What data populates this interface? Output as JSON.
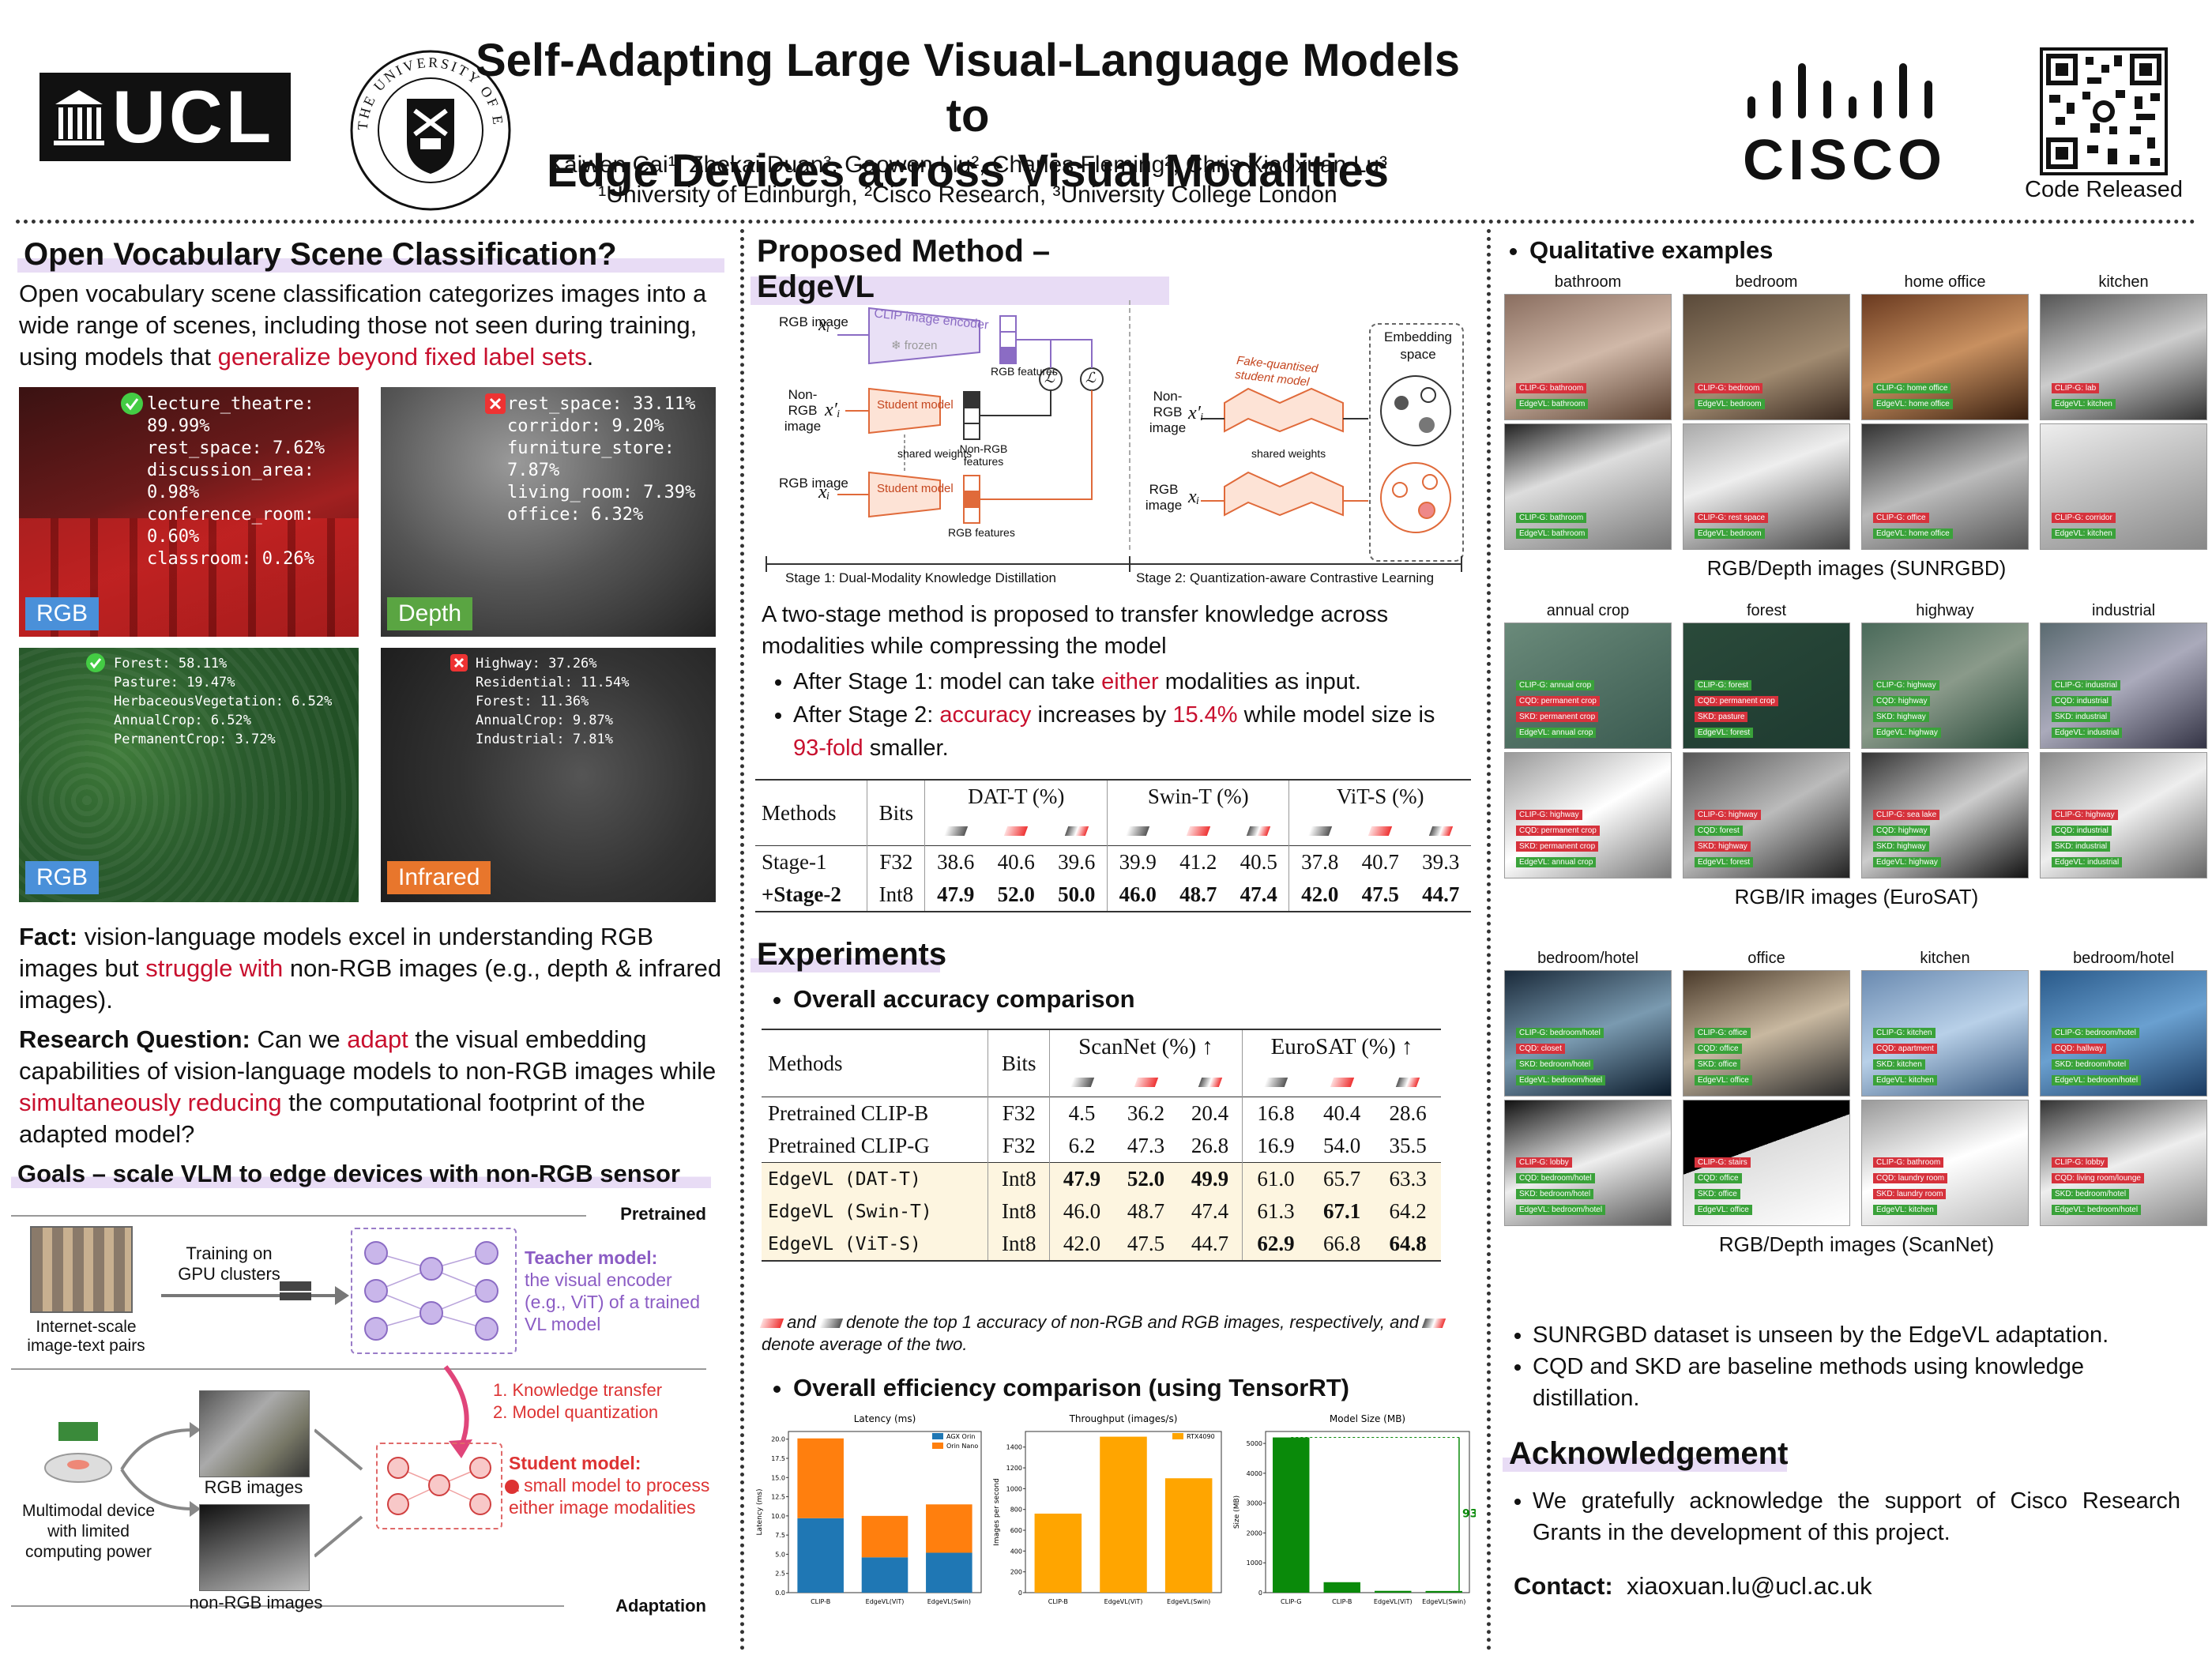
{
  "header": {
    "title_line1": "Self-Adapting Large Visual-Language Models to",
    "title_line2": "Edge Devices across Visual Modalities",
    "authors": "Kaiwen Cai¹, Zhekai Duan³, Gaowen Liu², Charles Fleming², Chris Xiaoxuan Lu³",
    "affiliations": "¹University of Edinburgh, ²Cisco Research, ³University College London",
    "ucl": "UCL",
    "edinburgh": "THE UNIVERSITY OF EDINBURGH",
    "cisco": "CISCO",
    "code_released": "Code Released"
  },
  "left": {
    "title": "Open Vocabulary Scene Classification?",
    "intro_a": "Open vocabulary scene classification categorizes images into a wide range of scenes, including those not seen during training, using models that ",
    "intro_red": "generalize beyond fixed label sets",
    "intro_b": ".",
    "img1": {
      "tag": "RGB",
      "lines": [
        "lecture_theatre: 89.99%",
        "rest_space: 7.62%",
        "discussion_area: 0.98%",
        "conference_room: 0.60%",
        "classroom: 0.26%"
      ]
    },
    "img2": {
      "tag": "Depth",
      "lines": [
        "rest_space: 33.11%",
        "corridor: 9.20%",
        "furniture_store: 7.87%",
        "living_room: 7.39%",
        "office: 6.32%"
      ]
    },
    "img3": {
      "tag": "RGB",
      "lines": [
        "Forest: 58.11%",
        "Pasture: 19.47%",
        "HerbaceousVegetation: 6.52%",
        "AnnualCrop: 6.52%",
        "PermanentCrop: 3.72%"
      ]
    },
    "img4": {
      "tag": "Infrared",
      "lines": [
        "Highway: 37.26%",
        "Residential: 11.54%",
        "Forest: 11.36%",
        "AnnualCrop: 9.87%",
        "Industrial: 7.81%"
      ]
    },
    "fact_b": "Fact:",
    "fact_a": " vision-language models excel in understanding RGB images but ",
    "fact_red": "struggle with",
    "fact_c": " non-RGB images (e.g., depth & infrared images).",
    "rq_b": "Research Question:",
    "rq_a": " Can we ",
    "rq_red1": "adapt",
    "rq_c": " the visual embedding capabilities of vision-language models to non-RGB images while ",
    "rq_red2": "simultaneously reducing",
    "rq_d": " the computational footprint of the adapted model?",
    "goals_title": "Goals – scale VLM to edge devices with non-RGB sensor",
    "goals": {
      "pretrained": "Pretrained",
      "adaptation": "Adaptation",
      "internet": "Internet-scale image-text pairs",
      "training": "Training on GPU clusters",
      "teacher_b": "Teacher model:",
      "teacher": "the visual encoder (e.g., ViT) of a trained VL model",
      "kt1": "1. Knowledge transfer",
      "kt2": "2. Model quantization",
      "student_b": "Student model:",
      "student": "a small model to process either image modalities",
      "rgb": "RGB images",
      "nonrgb": "non-RGB images",
      "device": "Multimodal device with limited computing power"
    }
  },
  "middle": {
    "title": "Proposed Method – EdgeVL",
    "diagram": {
      "rgb_image": "RGB image",
      "non_rgb_image": "Non-RGB image",
      "clip": "CLIP image encoder",
      "frozen": "frozen",
      "student": "Student model",
      "shared": "shared weights",
      "rgb_feat": "RGB features",
      "nonrgb_feat": "Non-RGB features",
      "fq": "Fake-quantised student model",
      "emb": "Embedding space",
      "stage1": "Stage 1: Dual-Modality Knowledge Distillation",
      "stage2": "Stage 2: Quantization-aware Contrastive Learning",
      "xi": "xᵢ",
      "xpi": "x′ᵢ",
      "loss": "ℒ"
    },
    "desc": "A two-stage method is proposed to transfer knowledge across modalities while compressing the model",
    "b1_a": "After Stage 1: model can take ",
    "b1_red": "either",
    "b1_b": " modalities as input.",
    "b2_a": "After Stage 2: ",
    "b2_red1": "accuracy",
    "b2_b": " increases by ",
    "b2_red2": "15.4%",
    "b2_c": " while model size is ",
    "b2_red3": "93-fold",
    "b2_d": " smaller.",
    "table1": {
      "headers": [
        "Methods",
        "Bits",
        "DAT-T (%)",
        "Swin-T (%)",
        "ViT-S (%)"
      ],
      "rows": [
        {
          "m": "Stage-1",
          "b": "F32",
          "v": [
            "38.6",
            "40.6",
            "39.6",
            "39.9",
            "41.2",
            "40.5",
            "37.8",
            "40.7",
            "39.3"
          ]
        },
        {
          "m": "+Stage-2",
          "b": "Int8",
          "v": [
            "47.9",
            "52.0",
            "50.0",
            "46.0",
            "48.7",
            "47.4",
            "42.0",
            "47.5",
            "44.7"
          ]
        }
      ]
    },
    "exp_title": "Experiments",
    "acc_title": "Overall accuracy comparison",
    "table2": {
      "headers": [
        "Methods",
        "Bits",
        "ScanNet (%) ↑",
        "EuroSAT (%) ↑"
      ],
      "rows": [
        {
          "m": "Pretrained CLIP-B",
          "b": "F32",
          "v": [
            "4.5",
            "36.2",
            "20.4",
            "16.8",
            "40.4",
            "28.6"
          ]
        },
        {
          "m": "Pretrained CLIP-G",
          "b": "F32",
          "v": [
            "6.2",
            "47.3",
            "26.8",
            "16.9",
            "54.0",
            "35.5"
          ]
        },
        {
          "m": "EdgeVL (DAT-T)",
          "b": "Int8",
          "v": [
            "47.9",
            "52.0",
            "49.9",
            "61.0",
            "65.7",
            "63.3"
          ]
        },
        {
          "m": "EdgeVL (Swin-T)",
          "b": "Int8",
          "v": [
            "46.0",
            "48.7",
            "47.4",
            "61.3",
            "67.1",
            "64.2"
          ]
        },
        {
          "m": "EdgeVL (ViT-S)",
          "b": "Int8",
          "v": [
            "42.0",
            "47.5",
            "44.7",
            "62.9",
            "66.8",
            "64.8"
          ]
        }
      ]
    },
    "legend_note_a": " and ",
    "legend_note_b": " denote the top 1 accuracy of non-RGB and RGB images, respectively, and ",
    "legend_note_c": " denote average of the two.",
    "eff_title": "Overall efficiency comparison (using TensorRT)"
  },
  "chart_data": [
    {
      "type": "bar",
      "title": "Latency (ms)",
      "ylabel": "Latency (ms)",
      "categories": [
        "CLIP-B",
        "EdgeVL(ViT)",
        "EdgeVL(Swin)"
      ],
      "series": [
        {
          "name": "AGX Orin",
          "values": [
            9.7,
            4.6,
            5.2
          ]
        },
        {
          "name": "Orin Nano",
          "values": [
            10.4,
            5.4,
            6.3
          ]
        }
      ],
      "stacked": true,
      "ylim": [
        0,
        21
      ],
      "yticks": [
        "0.0",
        "2.5",
        "5.0",
        "7.5",
        "10.0",
        "12.5",
        "15.0",
        "17.5",
        "20.0"
      ],
      "colors": [
        "#1f77b4",
        "#ff7f0e"
      ]
    },
    {
      "type": "bar",
      "title": "Throughput (images/s)",
      "ylabel": "Images per second",
      "categories": [
        "CLIP-B",
        "EdgeVL(ViT)",
        "EdgeVL(Swin)"
      ],
      "series": [
        {
          "name": "RTX4090",
          "values": [
            760,
            1500,
            1100
          ]
        }
      ],
      "ylim": [
        0,
        1550
      ],
      "yticks": [
        "0",
        "200",
        "400",
        "600",
        "800",
        "1000",
        "1200",
        "1400"
      ],
      "colors": [
        "#ffa500"
      ]
    },
    {
      "type": "bar",
      "title": "Model Size (MB)",
      "ylabel": "Size (MB)",
      "categories": [
        "CLIP-G",
        "CLIP-B",
        "EdgeVL(ViT)",
        "EdgeVL(Swin)"
      ],
      "series": [
        {
          "values": [
            5200,
            350,
            60,
            56
          ]
        }
      ],
      "ylim": [
        0,
        5400
      ],
      "yticks": [
        "0",
        "1000",
        "2000",
        "3000",
        "4000",
        "5000"
      ],
      "colors": [
        "#0a8a0a"
      ],
      "annotation": "93x"
    }
  ],
  "right": {
    "qual_title": "Qualitative examples",
    "sun": {
      "cols": [
        "bathroom",
        "bedroom",
        "home office",
        "kitchen"
      ],
      "caption": "RGB/Depth images (SUNRGBD)",
      "rgb": [
        [
          "r:CLIP-G: bathroom",
          "g:EdgeVL: bathroom"
        ],
        [
          "r:CLIP-G: bedroom",
          "g:EdgeVL: bedroom"
        ],
        [
          "g:CLIP-G: home office",
          "g:EdgeVL: home office"
        ],
        [
          "r:CLIP-G: lab",
          "g:EdgeVL: kitchen"
        ]
      ],
      "dep": [
        [
          "g:CLIP-G: bathroom",
          "g:EdgeVL: bathroom"
        ],
        [
          "r:CLIP-G: rest space",
          "g:EdgeVL: bedroom"
        ],
        [
          "r:CLIP-G: office",
          "g:EdgeVL: home office"
        ],
        [
          "r:CLIP-G: corridor",
          "g:EdgeVL: kitchen"
        ]
      ]
    },
    "euro": {
      "cols": [
        "annual crop",
        "forest",
        "highway",
        "industrial"
      ],
      "caption": "RGB/IR images (EuroSAT)",
      "rgb": [
        [
          "g:CLIP-G: annual crop",
          "r:CQD: permanent crop",
          "r:SKD: permanent crop",
          "g:EdgeVL: annual crop"
        ],
        [
          "g:CLIP-G: forest",
          "r:CQD: permanent crop",
          "r:SKD: pasture",
          "g:EdgeVL: forest"
        ],
        [
          "g:CLIP-G: highway",
          "g:CQD: highway",
          "g:SKD: highway",
          "g:EdgeVL: highway"
        ],
        [
          "g:CLIP-G: industrial",
          "g:CQD: industrial",
          "g:SKD: industrial",
          "g:EdgeVL: industrial"
        ]
      ],
      "ir": [
        [
          "r:CLIP-G: highway",
          "r:CQD: permanent crop",
          "r:SKD: permanent crop",
          "g:EdgeVL: annual crop"
        ],
        [
          "r:CLIP-G: highway",
          "g:CQD: forest",
          "r:SKD: highway",
          "g:EdgeVL: forest"
        ],
        [
          "r:CLIP-G: sea lake",
          "g:CQD: highway",
          "g:SKD: highway",
          "g:EdgeVL: highway"
        ],
        [
          "r:CLIP-G: highway",
          "g:CQD: industrial",
          "g:SKD: industrial",
          "g:EdgeVL: industrial"
        ]
      ]
    },
    "scan": {
      "cols": [
        "bedroom/hotel",
        "office",
        "kitchen",
        "bedroom/hotel"
      ],
      "caption": "RGB/Depth images (ScanNet)",
      "rgb": [
        [
          "g:CLIP-G: bedroom/hotel",
          "r:CQD: closet",
          "g:SKD: bedroom/hotel",
          "g:EdgeVL: bedroom/hotel"
        ],
        [
          "g:CLIP-G: office",
          "g:CQD: office",
          "g:SKD: office",
          "g:EdgeVL: office"
        ],
        [
          "g:CLIP-G: kitchen",
          "r:CQD: apartment",
          "g:SKD: kitchen",
          "g:EdgeVL: kitchen"
        ],
        [
          "g:CLIP-G: bedroom/hotel",
          "r:CQD: hallway",
          "g:SKD: bedroom/hotel",
          "g:EdgeVL: bedroom/hotel"
        ]
      ],
      "dep": [
        [
          "r:CLIP-G: lobby",
          "g:CQD: bedroom/hotel",
          "g:SKD: bedroom/hotel",
          "g:EdgeVL: bedroom/hotel"
        ],
        [
          "r:CLIP-G: stairs",
          "g:CQD: office",
          "g:SKD: office",
          "g:EdgeVL: office"
        ],
        [
          "r:CLIP-G: bathroom",
          "r:CQD: laundry room",
          "r:SKD: laundry room",
          "g:EdgeVL: kitchen"
        ],
        [
          "r:CLIP-G: lobby",
          "r:CQD: living room/lounge",
          "g:SKD: bedroom/hotel",
          "g:EdgeVL: bedroom/hotel"
        ]
      ]
    },
    "note1": "SUNRGBD dataset is unseen by the EdgeVL adaptation.",
    "note2": "CQD and SKD are baseline methods using knowledge distillation.",
    "ack_title": "Acknowledgement",
    "ack": "We gratefully acknowledge the support of Cisco Research Grants in the development of this project.",
    "contact_b": "Contact:",
    "contact": "xiaoxuan.lu@ucl.ac.uk"
  }
}
